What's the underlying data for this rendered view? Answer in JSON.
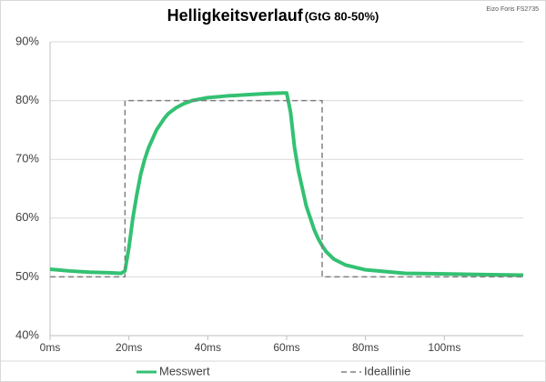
{
  "chart_data": {
    "type": "line",
    "title": "Helligkeitsverlauf",
    "subtitle": "(GtG 80-50%)",
    "annotation": "Eizo Foris FS2735",
    "xlim": [
      0,
      120
    ],
    "xticks": [
      {
        "value": 0,
        "label": "0ms"
      },
      {
        "value": 20,
        "label": "20ms"
      },
      {
        "value": 40,
        "label": "40ms"
      },
      {
        "value": 60,
        "label": "60ms"
      },
      {
        "value": 80,
        "label": "80ms"
      },
      {
        "value": 100,
        "label": "100ms"
      }
    ],
    "ylim": [
      40,
      90
    ],
    "yticks": [
      {
        "value": 40,
        "label": "40%"
      },
      {
        "value": 50,
        "label": "50%"
      },
      {
        "value": 60,
        "label": "60%"
      },
      {
        "value": 70,
        "label": "70%"
      },
      {
        "value": 80,
        "label": "80%"
      },
      {
        "value": 90,
        "label": "90%"
      }
    ],
    "grid": true,
    "legend": "bottom",
    "series": [
      {
        "name": "Messwert",
        "color": "#33c172",
        "dashed": false,
        "x": [
          0,
          5,
          10,
          15,
          18,
          19,
          20,
          21,
          22,
          23,
          24,
          25,
          26,
          27,
          28,
          29,
          30,
          32,
          34,
          36,
          40,
          45,
          50,
          55,
          59,
          60,
          61,
          62,
          63,
          64,
          65,
          66,
          67,
          68,
          69,
          70,
          72,
          75,
          80,
          90,
          100,
          110,
          120
        ],
        "values": [
          51.3,
          51,
          50.8,
          50.7,
          50.6,
          51,
          55,
          60,
          64,
          67.5,
          70,
          72,
          73.5,
          75,
          76,
          77,
          77.8,
          78.8,
          79.5,
          80,
          80.5,
          80.8,
          81,
          81.2,
          81.3,
          81.3,
          78,
          72,
          68,
          65,
          62,
          60,
          58,
          56.5,
          55.3,
          54.3,
          53,
          52,
          51.2,
          50.6,
          50.5,
          50.4,
          50.3
        ]
      },
      {
        "name": "Ideallinie",
        "color": "#808080",
        "dashed": true,
        "x": [
          0,
          19,
          19,
          69,
          69,
          120
        ],
        "values": [
          50,
          50,
          80,
          80,
          50,
          50
        ]
      }
    ]
  }
}
